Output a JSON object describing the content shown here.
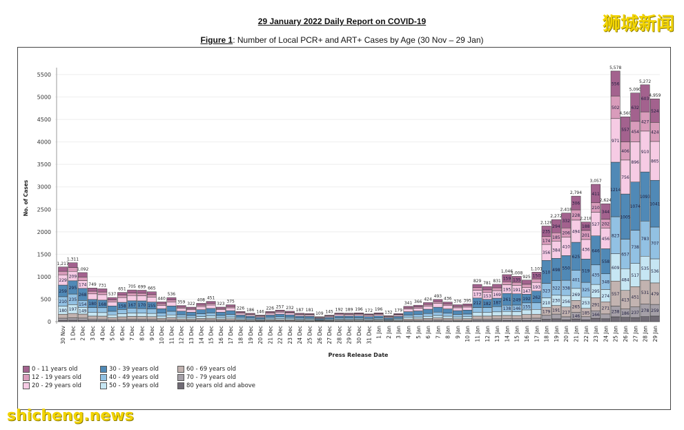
{
  "header": {
    "title": "29 January 2022 Daily Report on COVID-19",
    "figure_label": "Figure 1",
    "figure_caption": ": Number of Local PCR+ and ART+ Cases by Age (30 Nov – 29 Jan)"
  },
  "watermarks": {
    "top_right": "狮城新闻",
    "bottom_left": "shicheng.news"
  },
  "chart_data": {
    "type": "bar",
    "stacked": true,
    "xlabel": "Press Release Date",
    "ylabel": "No. of Cases",
    "ylim": [
      0,
      5500
    ],
    "yticks": [
      0,
      500,
      1000,
      1500,
      2000,
      2500,
      3000,
      3500,
      4000,
      4500,
      5000,
      5500
    ],
    "grid": "horizontal",
    "legend_position": "bottom-left",
    "categories": [
      "30 Nov",
      "1 Dec",
      "2 Dec",
      "3 Dec",
      "4 Dec",
      "5 Dec",
      "6 Dec",
      "7 Dec",
      "8 Dec",
      "9 Dec",
      "10 Dec",
      "11 Dec",
      "12 Dec",
      "13 Dec",
      "14 Dec",
      "15 Dec",
      "16 Dec",
      "17 Dec",
      "18 Dec",
      "19 Dec",
      "20 Dec",
      "21 Dec",
      "22 Dec",
      "23 Dec",
      "24 Dec",
      "25 Dec",
      "26 Dec",
      "27 Dec",
      "28 Dec",
      "29 Dec",
      "30 Dec",
      "31 Dec",
      "1 Jan",
      "2 Jan",
      "3 Jan",
      "4 Jan",
      "5 Jan",
      "6 Jan",
      "7 Jan",
      "8 Jan",
      "9 Jan",
      "10 Jan",
      "11 Jan",
      "12 Jan",
      "13 Jan",
      "14 Jan",
      "15 Jan",
      "16 Jan",
      "17 Jan",
      "18 Jan",
      "19 Jan",
      "20 Jan",
      "21 Jan",
      "22 Jan",
      "23 Jan",
      "24 Jan",
      "25 Jan",
      "26 Jan",
      "27 Jan",
      "28 Jan",
      "29 Jan"
    ],
    "totals": [
      1217,
      1311,
      1092,
      749,
      731,
      537,
      651,
      705,
      699,
      665,
      440,
      536,
      359,
      322,
      408,
      451,
      323,
      375,
      226,
      186,
      146,
      226,
      257,
      232,
      187,
      181,
      109,
      145,
      192,
      189,
      196,
      172,
      196,
      132,
      179,
      341,
      366,
      424,
      493,
      436,
      376,
      395,
      829,
      781,
      831,
      1046,
      1008,
      925,
      1101,
      2128,
      2272,
      2418,
      2794,
      2218,
      3057,
      2624,
      5578,
      4560,
      5090,
      5272,
      4959
    ],
    "total_labels": [
      "1,217",
      "1,311",
      "1,092",
      "749",
      "731",
      "537",
      "651",
      "705",
      "699",
      "665",
      "440",
      "536",
      "359",
      "322",
      "408",
      "451",
      "323",
      "375",
      "226",
      "186",
      "146",
      "226",
      "257",
      "232",
      "187",
      "181",
      "109",
      "145",
      "192",
      "189",
      "196",
      "172",
      "196",
      "132",
      "179",
      "341",
      "366",
      "424",
      "493",
      "436",
      "376",
      "395",
      "829",
      "781",
      "831",
      "1,046",
      "1,008",
      "925",
      "1,101",
      "2,128",
      "2,272",
      "2,418",
      "2,794",
      "2,218",
      "3,057",
      "2,624",
      "5,578",
      "4,560",
      "5,090",
      "5,272",
      "4,959"
    ],
    "series": [
      {
        "name": "0 - 11 years old",
        "color": "#a3628e"
      },
      {
        "name": "12 - 19 years old",
        "color": "#d99cbb"
      },
      {
        "name": "20 - 29 years old",
        "color": "#f6cbe4"
      },
      {
        "name": "30 - 39 years old",
        "color": "#5089b6"
      },
      {
        "name": "40 - 49 years old",
        "color": "#92c1e3"
      },
      {
        "name": "50 - 59 years old",
        "color": "#c6e6f3"
      },
      {
        "name": "60 - 69 years old",
        "color": "#c2b3b0"
      },
      {
        "name": "70 - 79 years old",
        "color": "#a5a0a8"
      },
      {
        "name": "80 years old and above",
        "color": "#706b75"
      }
    ],
    "segment_labels": {
      "30 Nov": [
        null,
        null,
        229,
        259,
        210,
        180,
        null,
        null,
        null
      ],
      "1 Dec": [
        null,
        null,
        209,
        295,
        235,
        197,
        null,
        null,
        null
      ],
      "2 Dec": [
        null,
        null,
        174,
        268,
        154,
        149,
        null,
        null,
        null
      ],
      "3 Dec": [
        null,
        null,
        null,
        180,
        null,
        null,
        null,
        null,
        null
      ],
      "4 Dec": [
        null,
        null,
        null,
        168,
        null,
        null,
        null,
        null,
        null
      ],
      "6 Dec": [
        null,
        null,
        null,
        158,
        null,
        null,
        null,
        null,
        null
      ],
      "7 Dec": [
        null,
        null,
        null,
        167,
        null,
        null,
        null,
        null,
        null
      ],
      "8 Dec": [
        null,
        null,
        null,
        170,
        null,
        null,
        null,
        null,
        null
      ],
      "9 Dec": [
        null,
        null,
        null,
        155,
        null,
        null,
        null,
        null,
        null
      ],
      "11 Jan": [
        null,
        null,
        173,
        212,
        null,
        null,
        null,
        null,
        null
      ],
      "12 Jan": [
        null,
        null,
        153,
        182,
        null,
        null,
        null,
        null,
        null
      ],
      "13 Jan": [
        null,
        null,
        169,
        187,
        null,
        null,
        null,
        null,
        null
      ],
      "14 Jan": [
        159,
        null,
        195,
        261,
        138,
        null,
        null,
        null,
        null
      ],
      "15 Jan": [
        135,
        null,
        191,
        249,
        146,
        null,
        null,
        null,
        null
      ],
      "16 Jan": [
        null,
        null,
        147,
        192,
        155,
        null,
        null,
        null,
        null
      ],
      "17 Jan": [
        150,
        null,
        193,
        262,
        null,
        null,
        null,
        null,
        null
      ],
      "18 Jan": [
        235,
        174,
        356,
        510,
        323,
        210,
        179,
        null,
        null
      ],
      "19 Jan": [
        294,
        185,
        384,
        498,
        322,
        230,
        191,
        null,
        null
      ],
      "20 Jan": [
        332,
        206,
        410,
        550,
        338,
        256,
        217,
        null,
        null
      ],
      "21 Jan": [
        306,
        228,
        494,
        625,
        401,
        269,
        265,
        146,
        null
      ],
      "22 Jan": [
        188,
        201,
        436,
        519,
        325,
        253,
        185,
        null,
        null
      ],
      "23 Jan": [
        411,
        210,
        527,
        646,
        435,
        295,
        291,
        166,
        null
      ],
      "24 Jan": [
        344,
        202,
        456,
        558,
        348,
        274,
        271,
        null,
        null
      ],
      "25 Jan": [
        556,
        502,
        971,
        1214,
        823,
        609,
        557,
        238,
        null
      ],
      "26 Jan": [
        557,
        406,
        756,
        1005,
        657,
        484,
        413,
        186,
        null
      ],
      "27 Jan": [
        632,
        454,
        896,
        1074,
        738,
        517,
        451,
        237,
        null
      ],
      "28 Jan": [
        603,
        427,
        910,
        1093,
        783,
        535,
        531,
        278,
        null
      ],
      "29 Jan": [
        524,
        424,
        865,
        1041,
        707,
        536,
        479,
        259,
        null
      ]
    }
  }
}
